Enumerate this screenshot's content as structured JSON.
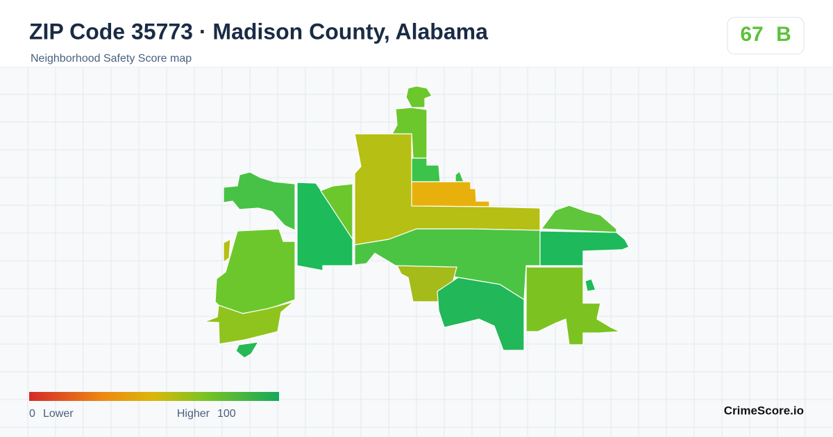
{
  "header": {
    "title": "ZIP Code 35773 · Madison County, Alabama",
    "subtitle": "Neighborhood Safety Score map"
  },
  "score": {
    "value": 67,
    "grade": "B"
  },
  "legend": {
    "min": 0,
    "min_label": "Lower",
    "max_label": "Higher",
    "max": 100
  },
  "brand": "CrimeScore.io"
}
